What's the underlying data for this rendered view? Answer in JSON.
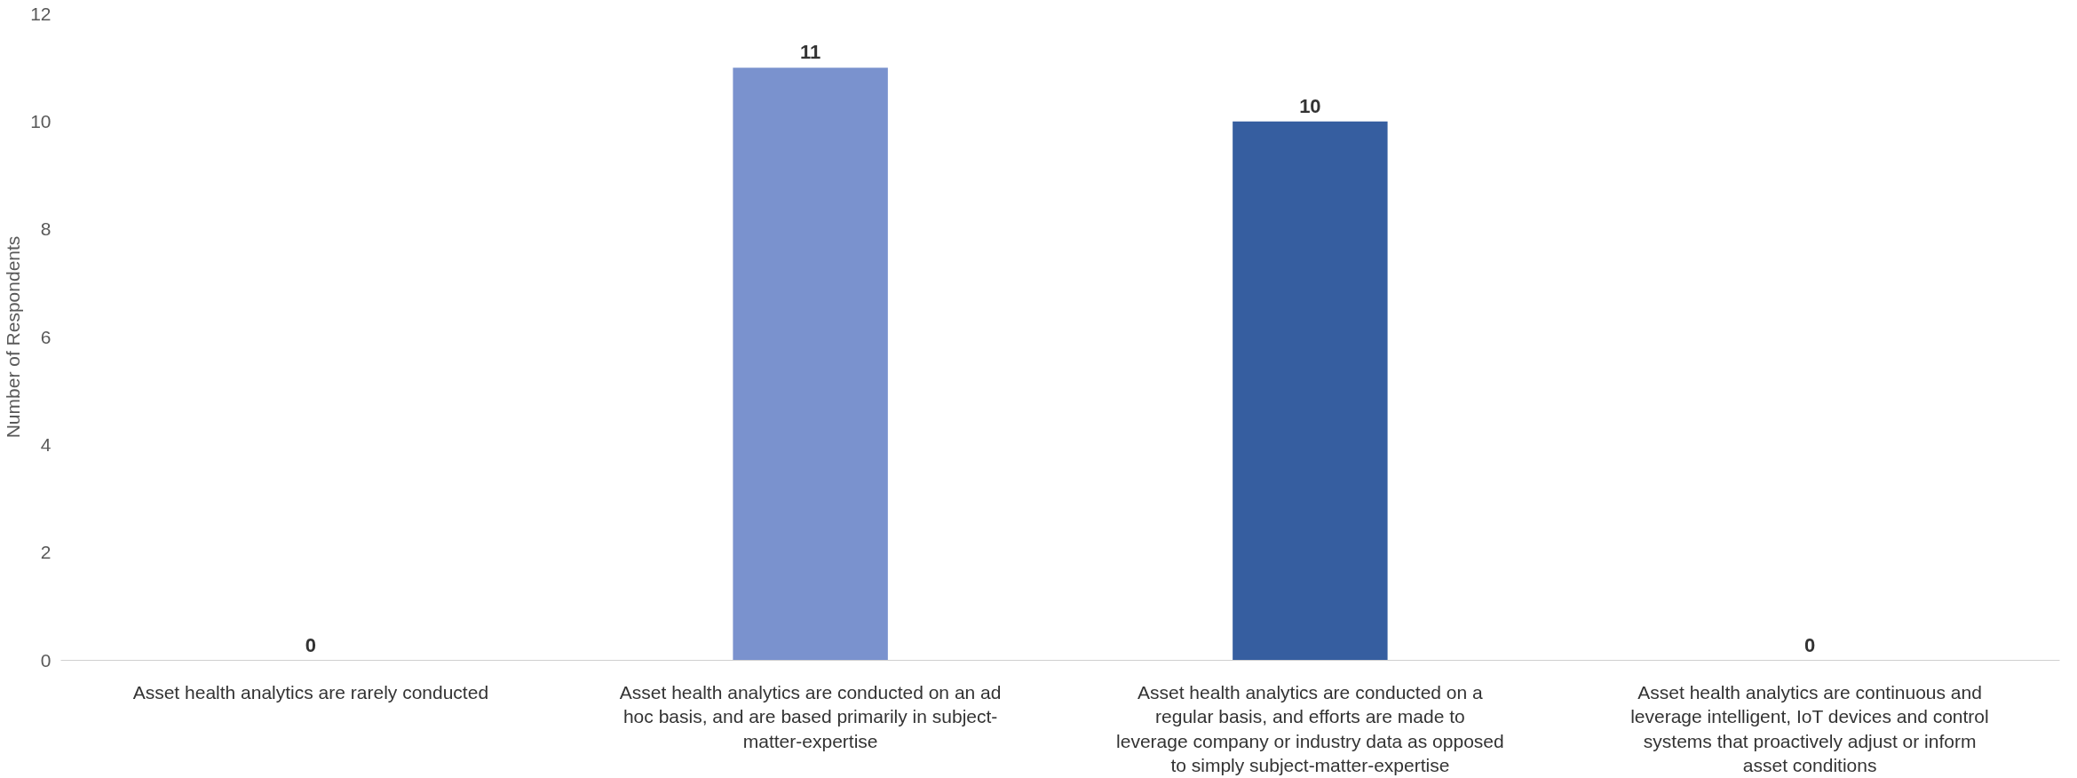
{
  "chart_data": {
    "type": "bar",
    "ylabel": "Number of Respondents",
    "categories": [
      "Asset health analytics are rarely conducted",
      "Asset health analytics are conducted on an ad hoc basis, and are based primarily in subject-matter-expertise",
      "Asset health analytics are conducted on a regular basis, and efforts are made to leverage company or industry data as opposed to simply subject-matter-expertise",
      "Asset health analytics are continuous and leverage intelligent, IoT devices and control systems that proactively adjust or inform asset conditions"
    ],
    "values": [
      0,
      11,
      10,
      0
    ],
    "colors": [
      "#7a92ce",
      "#7a92ce",
      "#365ea0",
      "#365ea0"
    ],
    "ylim": [
      0,
      12
    ],
    "yticks": [
      0,
      2,
      4,
      6,
      8,
      10,
      12
    ],
    "grid": false,
    "data_labels": true
  }
}
